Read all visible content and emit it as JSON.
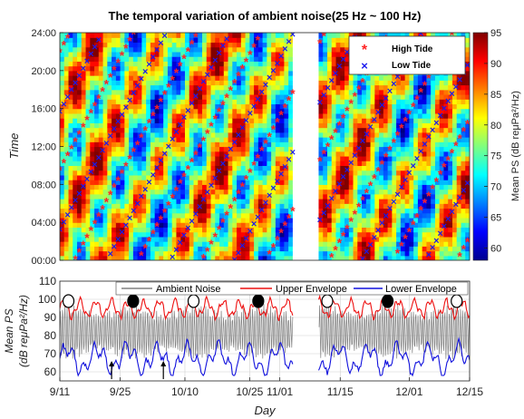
{
  "chart_data": [
    {
      "type": "heatmap",
      "title": "The temporal variation of ambient noise(25 Hz ~ 100 Hz)",
      "ylabel": "Time",
      "y_ticks": [
        "00:00",
        "04:00",
        "08:00",
        "12:00",
        "16:00",
        "20:00",
        "24:00"
      ],
      "y_range_hours": [
        0,
        24
      ],
      "x_range_days": [
        0,
        95
      ],
      "data_gap_days": [
        54,
        60
      ],
      "colorbar": {
        "label": "Mean PS  (dB reμPa²/Hz)",
        "ticks": [
          "60",
          "65",
          "70",
          "75",
          "80",
          "85",
          "90",
          "95"
        ],
        "range": [
          58,
          95
        ],
        "colormap": "jet"
      },
      "legend": {
        "position": "top-right",
        "entries": [
          "High Tide",
          "Low Tide"
        ]
      },
      "series": [
        {
          "name": "High Tide",
          "marker": "red-asterisk",
          "color": "#ff2222",
          "description": "tidal high-water times drifting ~0.84 h/day"
        },
        {
          "name": "Low Tide",
          "marker": "blue-x",
          "color": "#1a1aee",
          "description": "tidal low-water times drifting ~0.84 h/day"
        }
      ]
    },
    {
      "type": "line",
      "ylabel_line1": "Mean PS",
      "ylabel_line2": "(dB reμPa²/Hz)",
      "xlabel": "Day",
      "ylim": [
        55,
        110
      ],
      "y_ticks": [
        "60",
        "70",
        "80",
        "90",
        "100",
        "110"
      ],
      "x_ticks": [
        "9/11",
        "9/25",
        "10/10",
        "10/25",
        "11/01",
        "11/15",
        "12/01",
        "12/15"
      ],
      "x_tick_days": [
        0,
        14,
        29,
        44,
        51,
        65,
        81,
        95
      ],
      "data_gap_days": [
        54,
        60
      ],
      "legend": {
        "position": "top",
        "entries": [
          "Ambient Noise",
          "Upper Envelope",
          "Lower Envelope"
        ]
      },
      "series": [
        {
          "name": "Ambient Noise",
          "color": "#808080",
          "typical_range": [
            65,
            98
          ]
        },
        {
          "name": "Upper Envelope",
          "color": "#ee1111",
          "typical_range": [
            90,
            102
          ]
        },
        {
          "name": "Lower Envelope",
          "color": "#1111dd",
          "typical_range": [
            60,
            85
          ]
        }
      ],
      "moon_phase_days": [
        {
          "day": 2,
          "phase": "full"
        },
        {
          "day": 17,
          "phase": "new"
        },
        {
          "day": 31,
          "phase": "full"
        },
        {
          "day": 46,
          "phase": "new"
        },
        {
          "day": 62,
          "phase": "full"
        },
        {
          "day": 76,
          "phase": "new"
        },
        {
          "day": 92,
          "phase": "full"
        }
      ],
      "arrow_days": [
        12,
        24
      ]
    }
  ],
  "colors": {
    "high_tide": "#ff2222",
    "low_tide": "#1a1aee",
    "ambient": "#808080",
    "upper": "#ee1111",
    "lower": "#1111dd"
  }
}
